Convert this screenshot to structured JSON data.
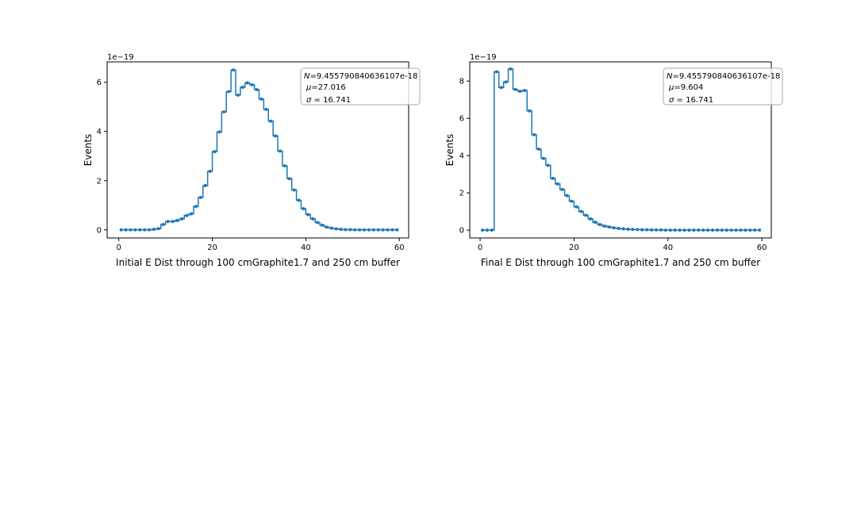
{
  "chart_data": [
    {
      "type": "line",
      "drawstyle": "steps-mid",
      "marker": "dot",
      "color": "#1f77b4",
      "title": "",
      "xlabel": "Initial E Dist through 100 cmGraphite1.7 and 250 cm buffer",
      "ylabel": "Events",
      "ylabel_offset": "1e−19",
      "xlim": [
        -2.5,
        62.0
      ],
      "ylim": [
        -0.33,
        6.83
      ],
      "xticks": [
        0,
        20,
        40,
        60
      ],
      "xtick_labels": [
        "0",
        "20",
        "40",
        "60"
      ],
      "yticks": [
        0,
        2,
        4,
        6
      ],
      "ytick_labels": [
        "0",
        "2",
        "4",
        "6"
      ],
      "legend_position": "top-right",
      "stats_box": {
        "line1_symbol": "N",
        "line1_value": "=9.455790840636107e-18",
        "line2_symbol": "μ",
        "line2_value": "=27.016",
        "line3_symbol": "σ",
        "line3_value": " = 16.741"
      },
      "x": [
        0.5,
        1.5,
        2.5,
        3.5,
        4.5,
        5.5,
        6.5,
        7.5,
        8.5,
        9.5,
        10.5,
        11.5,
        12.5,
        13.5,
        14.5,
        15.5,
        16.5,
        17.5,
        18.5,
        19.5,
        20.5,
        21.5,
        22.5,
        23.5,
        24.5,
        25.5,
        26.5,
        27.5,
        28.5,
        29.5,
        30.5,
        31.5,
        32.5,
        33.5,
        34.5,
        35.5,
        36.5,
        37.5,
        38.5,
        39.5,
        40.5,
        41.5,
        42.5,
        43.5,
        44.5,
        45.5,
        46.5,
        47.5,
        48.5,
        49.5,
        50.5,
        51.5,
        52.5,
        53.5,
        54.5,
        55.5,
        56.5,
        57.5,
        58.5,
        59.5
      ],
      "y": [
        0,
        0,
        0,
        0,
        0,
        0,
        0,
        0.02,
        0.05,
        0.22,
        0.34,
        0.34,
        0.38,
        0.45,
        0.58,
        0.65,
        0.95,
        1.32,
        1.8,
        2.38,
        3.18,
        3.98,
        4.8,
        5.62,
        6.5,
        5.48,
        5.8,
        5.98,
        5.9,
        5.7,
        5.32,
        4.9,
        4.42,
        3.82,
        3.2,
        2.6,
        2.08,
        1.62,
        1.2,
        0.86,
        0.62,
        0.45,
        0.3,
        0.19,
        0.11,
        0.07,
        0.04,
        0.02,
        0.01,
        0.01,
        0,
        0,
        0,
        0,
        0,
        0,
        0,
        0,
        0,
        0
      ]
    },
    {
      "type": "line",
      "drawstyle": "steps-mid",
      "marker": "dot",
      "color": "#1f77b4",
      "title": "",
      "xlabel": "Final E Dist through 100 cmGraphite1.7 and 250 cm buffer",
      "ylabel": "Events",
      "ylabel_offset": "1e−19",
      "xlim": [
        -2.2,
        62.0
      ],
      "ylim": [
        -0.42,
        9.03
      ],
      "xticks": [
        0,
        20,
        40,
        60
      ],
      "xtick_labels": [
        "0",
        "20",
        "40",
        "60"
      ],
      "yticks": [
        0,
        2,
        4,
        6,
        8
      ],
      "ytick_labels": [
        "0",
        "2",
        "4",
        "6",
        "8"
      ],
      "legend_position": "top-right",
      "stats_box": {
        "line1_symbol": "N",
        "line1_value": "=9.455790840636107e-18",
        "line2_symbol": "μ",
        "line2_value": "=9.604",
        "line3_symbol": "σ",
        "line3_value": " = 16.741"
      },
      "x": [
        0.5,
        1.5,
        2.5,
        3.5,
        4.5,
        5.5,
        6.5,
        7.5,
        8.5,
        9.5,
        10.5,
        11.5,
        12.5,
        13.5,
        14.5,
        15.5,
        16.5,
        17.5,
        18.5,
        19.5,
        20.5,
        21.5,
        22.5,
        23.5,
        24.5,
        25.5,
        26.5,
        27.5,
        28.5,
        29.5,
        30.5,
        31.5,
        32.5,
        33.5,
        34.5,
        35.5,
        36.5,
        37.5,
        38.5,
        39.5,
        40.5,
        41.5,
        42.5,
        43.5,
        44.5,
        45.5,
        46.5,
        47.5,
        48.5,
        49.5,
        50.5,
        51.5,
        52.5,
        53.5,
        54.5,
        55.5,
        56.5,
        57.5,
        58.5,
        59.5
      ],
      "y": [
        0,
        0,
        0,
        8.5,
        7.65,
        7.95,
        8.65,
        7.55,
        7.45,
        7.5,
        6.4,
        5.12,
        4.35,
        3.85,
        3.48,
        2.78,
        2.48,
        2.18,
        1.85,
        1.55,
        1.25,
        1.0,
        0.8,
        0.6,
        0.42,
        0.3,
        0.22,
        0.17,
        0.12,
        0.09,
        0.07,
        0.05,
        0.04,
        0.03,
        0.02,
        0.02,
        0.01,
        0.01,
        0.01,
        0,
        0,
        0,
        0,
        0,
        0,
        0,
        0,
        0,
        0,
        0,
        0,
        0,
        0,
        0,
        0,
        0,
        0,
        0,
        0,
        0
      ]
    }
  ]
}
